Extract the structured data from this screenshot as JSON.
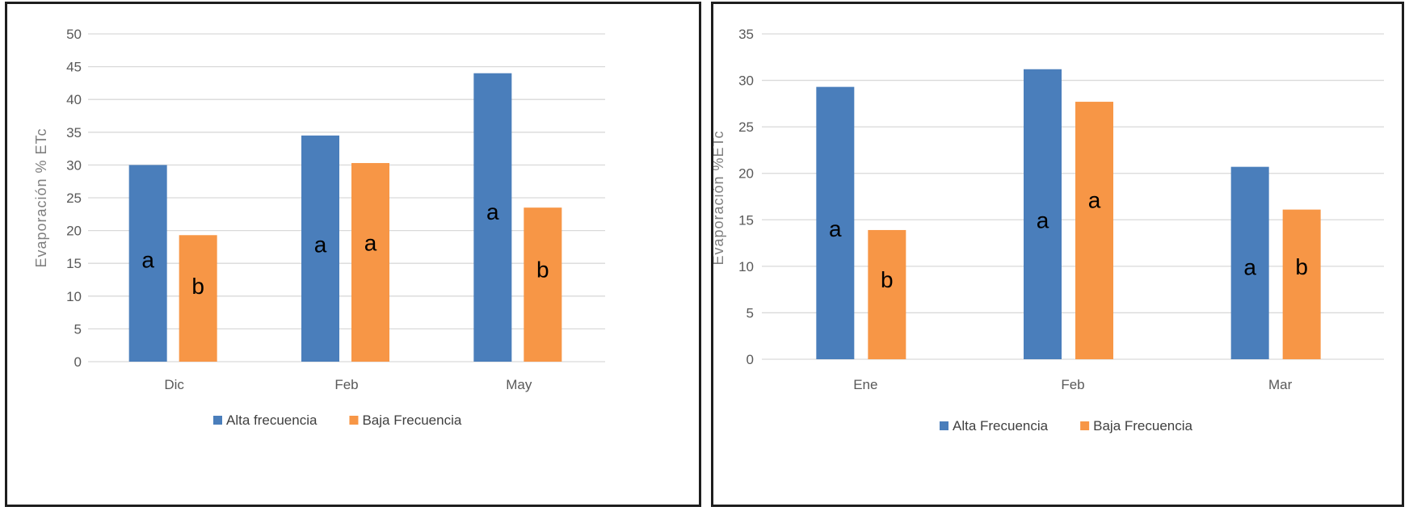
{
  "chart_data": [
    {
      "type": "bar",
      "title": "",
      "xlabel": "",
      "ylabel": "Evaporación % ETc",
      "categories": [
        "Dic",
        "Feb",
        "May"
      ],
      "ylim": [
        0,
        50
      ],
      "yticks": [
        0,
        5,
        10,
        15,
        20,
        25,
        30,
        35,
        40,
        45,
        50
      ],
      "grid": true,
      "legend_position": "bottom",
      "series": [
        {
          "name": "Alta frecuencia",
          "color": "#4a7ebb",
          "values": [
            30,
            34.5,
            44
          ],
          "labels": [
            "a",
            "a",
            "a"
          ]
        },
        {
          "name": "Baja Frecuencia",
          "color": "#f79646",
          "values": [
            19.3,
            30.3,
            23.5
          ],
          "labels": [
            "b",
            "a",
            "b"
          ]
        }
      ]
    },
    {
      "type": "bar",
      "title": "",
      "xlabel": "",
      "ylabel": "Evaporación %ETc",
      "categories": [
        "Ene",
        "Feb",
        "Mar"
      ],
      "ylim": [
        0,
        35
      ],
      "yticks": [
        0,
        5,
        10,
        15,
        20,
        25,
        30,
        35
      ],
      "grid": true,
      "legend_position": "bottom",
      "series": [
        {
          "name": "Alta Frecuencia",
          "color": "#4a7ebb",
          "values": [
            29.3,
            31.2,
            20.7
          ],
          "labels": [
            "a",
            "a",
            "a"
          ]
        },
        {
          "name": "Baja Frecuencia",
          "color": "#f79646",
          "values": [
            13.9,
            27.7,
            16.1
          ],
          "labels": [
            "b",
            "a",
            "b"
          ]
        }
      ]
    }
  ]
}
